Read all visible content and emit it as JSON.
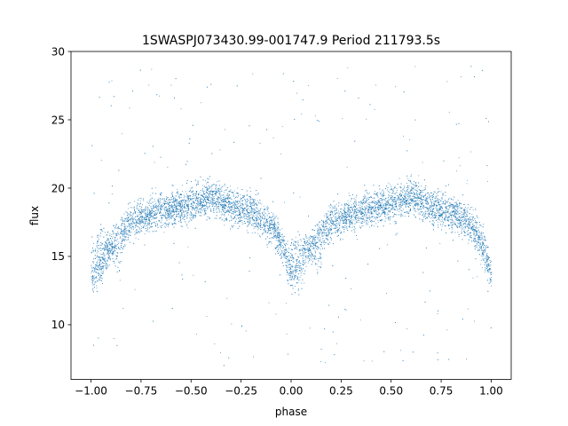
{
  "chart_data": {
    "type": "scatter",
    "title": "1SWASPJ073430.99-001747.9 Period 211793.5s",
    "xlabel": "phase",
    "ylabel": "flux",
    "xlim": [
      -1.1,
      1.1
    ],
    "ylim": [
      6,
      30
    ],
    "xticks": [
      -1.0,
      -0.75,
      -0.5,
      -0.25,
      0.0,
      0.25,
      0.5,
      0.75,
      1.0
    ],
    "xtick_labels": [
      "−1.00",
      "−0.75",
      "−0.50",
      "−0.25",
      "0.00",
      "0.25",
      "0.50",
      "0.75",
      "1.00"
    ],
    "yticks": [
      10,
      15,
      20,
      25,
      30
    ],
    "ytick_labels": [
      "10",
      "15",
      "20",
      "25",
      "30"
    ],
    "grid": false,
    "legend": "none",
    "marker_color": "#1f77b4",
    "series": [
      {
        "x_range": [
          -1.0,
          1.0
        ],
        "curve_phase": [
          0.0,
          0.05,
          0.1,
          0.15,
          0.2,
          0.25,
          0.3,
          0.35,
          0.4,
          0.45,
          0.5,
          0.55,
          0.6,
          0.65,
          0.7,
          0.75,
          0.8,
          0.85,
          0.9,
          0.95,
          1.0
        ],
        "curve_flux": [
          13.6,
          14.4,
          16.0,
          16.6,
          17.6,
          17.8,
          18.2,
          18.4,
          18.5,
          18.7,
          18.9,
          19.2,
          19.4,
          19.0,
          18.7,
          18.5,
          18.3,
          17.8,
          17.3,
          16.0,
          13.8
        ],
        "secondary_branch_phase": [
          0.02,
          0.05,
          0.08,
          0.11,
          0.14
        ],
        "secondary_branch_flux": [
          15.6,
          16.1,
          15.8,
          15.3,
          14.6
        ],
        "scatter_sigma": 0.9,
        "outlier_flux_range": [
          7,
          29
        ]
      }
    ]
  }
}
